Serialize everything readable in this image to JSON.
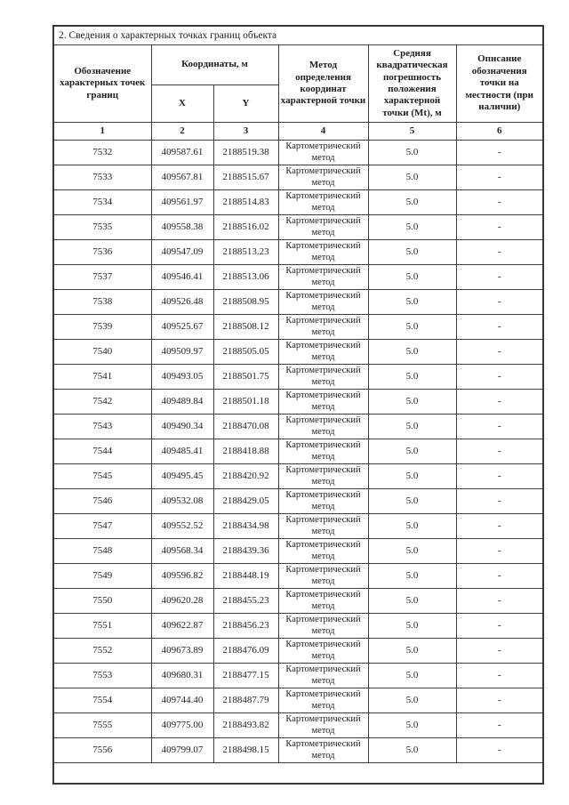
{
  "section": {
    "title": "2. Сведения о характерных точках границ объекта"
  },
  "table": {
    "headers": {
      "designation": "Обозначение характерных точек границ",
      "coordinates_group": "Координаты, м",
      "x": "X",
      "y": "Y",
      "method": "Метод определения координат характерной точки",
      "error": "Средняя квадратическая погрешность положения характерной точки (Mt), м",
      "description": "Описание обозначения точки на местности (при наличии)"
    },
    "column_numbers": {
      "c1": "1",
      "c2": "2",
      "c3": "3",
      "c4": "4",
      "c5": "5",
      "c6": "6"
    },
    "rows": [
      {
        "point": "7532",
        "x": "409587.61",
        "y": "2188519.38",
        "method": "Картометрический метод",
        "error": "5.0",
        "description": "-"
      },
      {
        "point": "7533",
        "x": "409567.81",
        "y": "2188515.67",
        "method": "Картометрический метод",
        "error": "5.0",
        "description": "-"
      },
      {
        "point": "7534",
        "x": "409561.97",
        "y": "2188514.83",
        "method": "Картометрический метод",
        "error": "5.0",
        "description": "-"
      },
      {
        "point": "7535",
        "x": "409558.38",
        "y": "2188516.02",
        "method": "Картометрический метод",
        "error": "5.0",
        "description": "-"
      },
      {
        "point": "7536",
        "x": "409547.09",
        "y": "2188513.23",
        "method": "Картометрический метод",
        "error": "5.0",
        "description": "-"
      },
      {
        "point": "7537",
        "x": "409546.41",
        "y": "2188513.06",
        "method": "Картометрический метод",
        "error": "5.0",
        "description": "-"
      },
      {
        "point": "7538",
        "x": "409526.48",
        "y": "2188508.95",
        "method": "Картометрический метод",
        "error": "5.0",
        "description": "-"
      },
      {
        "point": "7539",
        "x": "409525.67",
        "y": "2188508.12",
        "method": "Картометрический метод",
        "error": "5.0",
        "description": "-"
      },
      {
        "point": "7540",
        "x": "409509.97",
        "y": "2188505.05",
        "method": "Картометрический метод",
        "error": "5.0",
        "description": "-"
      },
      {
        "point": "7541",
        "x": "409493.05",
        "y": "2188501.75",
        "method": "Картометрический метод",
        "error": "5.0",
        "description": "-"
      },
      {
        "point": "7542",
        "x": "409489.84",
        "y": "2188501.18",
        "method": "Картометрический метод",
        "error": "5.0",
        "description": "-"
      },
      {
        "point": "7543",
        "x": "409490.34",
        "y": "2188470.08",
        "method": "Картометрический метод",
        "error": "5.0",
        "description": "-"
      },
      {
        "point": "7544",
        "x": "409485.41",
        "y": "2188418.88",
        "method": "Картометрический метод",
        "error": "5.0",
        "description": "-"
      },
      {
        "point": "7545",
        "x": "409495.45",
        "y": "2188420.92",
        "method": "Картометрический метод",
        "error": "5.0",
        "description": "-"
      },
      {
        "point": "7546",
        "x": "409532.08",
        "y": "2188429.05",
        "method": "Картометрический метод",
        "error": "5.0",
        "description": "-"
      },
      {
        "point": "7547",
        "x": "409552.52",
        "y": "2188434.98",
        "method": "Картометрический метод",
        "error": "5.0",
        "description": "-"
      },
      {
        "point": "7548",
        "x": "409568.34",
        "y": "2188439.36",
        "method": "Картометрический метод",
        "error": "5.0",
        "description": "-"
      },
      {
        "point": "7549",
        "x": "409596.82",
        "y": "2188448.19",
        "method": "Картометрический метод",
        "error": "5.0",
        "description": "-"
      },
      {
        "point": "7550",
        "x": "409620.28",
        "y": "2188455.23",
        "method": "Картометрический метод",
        "error": "5.0",
        "description": "-"
      },
      {
        "point": "7551",
        "x": "409622.87",
        "y": "2188456.23",
        "method": "Картометрический метод",
        "error": "5.0",
        "description": "-"
      },
      {
        "point": "7552",
        "x": "409673.89",
        "y": "2188476.09",
        "method": "Картометрический метод",
        "error": "5.0",
        "description": "-"
      },
      {
        "point": "7553",
        "x": "409680.31",
        "y": "2188477.15",
        "method": "Картометрический метод",
        "error": "5.0",
        "description": "-"
      },
      {
        "point": "7554",
        "x": "409744.40",
        "y": "2188487.79",
        "method": "Картометрический метод",
        "error": "5.0",
        "description": "-"
      },
      {
        "point": "7555",
        "x": "409775.00",
        "y": "2188493.82",
        "method": "Картометрический метод",
        "error": "5.0",
        "description": "-"
      },
      {
        "point": "7556",
        "x": "409799.07",
        "y": "2188498.15",
        "method": "Картометрический метод",
        "error": "5.0",
        "description": "-"
      }
    ]
  }
}
